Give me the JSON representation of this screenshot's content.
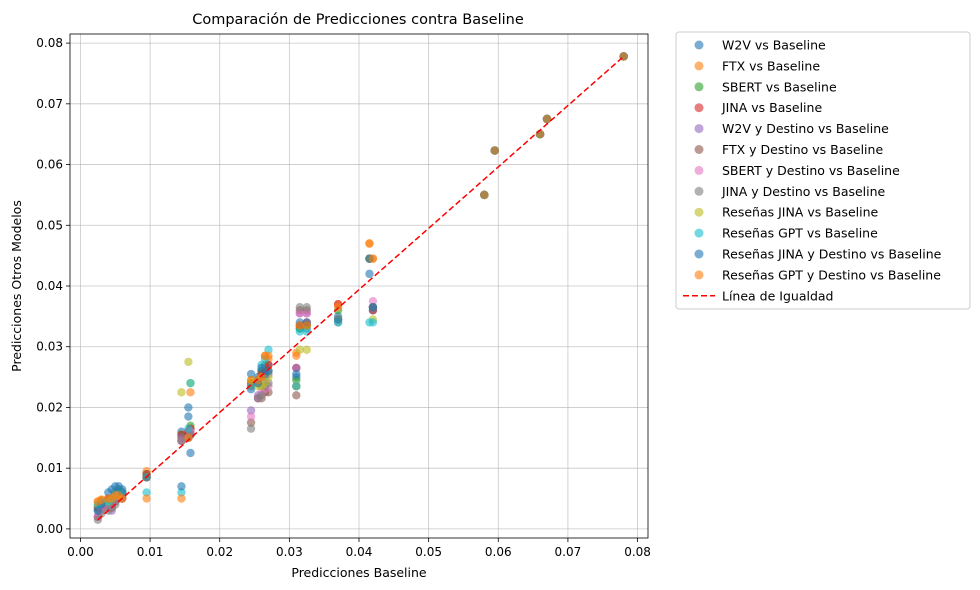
{
  "chart_data": {
    "type": "scatter",
    "title": "Comparación de Predicciones contra Baseline",
    "xlabel": "Predicciones Baseline",
    "ylabel": "Predicciones Otros Modelos",
    "xlim": [
      -0.0015,
      0.0815
    ],
    "ylim": [
      -0.0015,
      0.0815
    ],
    "xticks": [
      0.0,
      0.01,
      0.02,
      0.03,
      0.04,
      0.05,
      0.06,
      0.07,
      0.08
    ],
    "yticks": [
      0.0,
      0.01,
      0.02,
      0.03,
      0.04,
      0.05,
      0.06,
      0.07,
      0.08
    ],
    "xtick_labels": [
      "0.00",
      "0.01",
      "0.02",
      "0.03",
      "0.04",
      "0.05",
      "0.06",
      "0.07",
      "0.08"
    ],
    "ytick_labels": [
      "0.00",
      "0.01",
      "0.02",
      "0.03",
      "0.04",
      "0.05",
      "0.06",
      "0.07",
      "0.08"
    ],
    "grid": true,
    "legend_position": "outside-right-top",
    "x": [
      0.0025,
      0.003,
      0.004,
      0.0045,
      0.005,
      0.0055,
      0.006,
      0.0095,
      0.0145,
      0.0155,
      0.0158,
      0.0245,
      0.0255,
      0.026,
      0.0265,
      0.027,
      0.031,
      0.0315,
      0.0325,
      0.037,
      0.0415,
      0.042,
      0.058,
      0.0595,
      0.066,
      0.067,
      0.078
    ],
    "series": [
      {
        "name": "W2V vs Baseline",
        "color": "#1f77b4",
        "y": [
          0.003,
          0.0035,
          0.004,
          0.0045,
          0.0055,
          0.006,
          0.0065,
          0.0085,
          0.016,
          0.02,
          0.0155,
          0.023,
          0.025,
          0.026,
          0.025,
          0.027,
          0.025,
          0.033,
          0.033,
          0.035,
          0.042,
          0.036,
          0.055,
          0.0623,
          0.065,
          0.0675,
          0.0778
        ]
      },
      {
        "name": "FTX vs Baseline",
        "color": "#ff7f0e",
        "y": [
          0.0045,
          0.0048,
          0.005,
          0.005,
          0.0055,
          0.006,
          0.0055,
          0.0095,
          0.015,
          0.016,
          0.0165,
          0.024,
          0.024,
          0.025,
          0.0285,
          0.028,
          0.029,
          0.0335,
          0.0335,
          0.037,
          0.047,
          0.0445,
          0.055,
          0.0623,
          0.065,
          0.0675,
          0.0778
        ]
      },
      {
        "name": "SBERT vs Baseline",
        "color": "#2ca02c",
        "y": [
          0.0035,
          0.004,
          0.0045,
          0.005,
          0.006,
          0.0065,
          0.006,
          0.009,
          0.0155,
          0.0155,
          0.017,
          0.024,
          0.0245,
          0.026,
          0.027,
          0.026,
          0.0245,
          0.033,
          0.0335,
          0.036,
          0.0445,
          0.0365,
          0.055,
          0.0623,
          0.065,
          0.0675,
          0.0778
        ]
      },
      {
        "name": "JINA vs Baseline",
        "color": "#d62728",
        "y": [
          0.0035,
          0.0045,
          0.005,
          0.005,
          0.0055,
          0.006,
          0.006,
          0.009,
          0.0155,
          0.016,
          0.0165,
          0.0235,
          0.0245,
          0.0255,
          0.0265,
          0.027,
          0.0265,
          0.0335,
          0.034,
          0.037,
          0.0445,
          0.036,
          0.055,
          0.0623,
          0.065,
          0.0675,
          0.0778
        ]
      },
      {
        "name": "W2V y Destino vs Baseline",
        "color": "#9467bd",
        "y": [
          0.002,
          0.0035,
          0.0035,
          0.003,
          0.0045,
          0.0055,
          0.0055,
          0.0085,
          0.015,
          0.015,
          0.016,
          0.0195,
          0.022,
          0.0235,
          0.024,
          0.0255,
          0.0265,
          0.0355,
          0.0355,
          0.0345,
          0.0445,
          0.0365,
          0.055,
          0.0623,
          0.065,
          0.0675,
          0.0778
        ]
      },
      {
        "name": "FTX y Destino vs Baseline",
        "color": "#8c564b",
        "y": [
          0.002,
          0.003,
          0.0035,
          0.0035,
          0.0045,
          0.005,
          0.005,
          0.0085,
          0.0145,
          0.015,
          0.0155,
          0.0175,
          0.0215,
          0.0215,
          0.0225,
          0.0225,
          0.022,
          0.036,
          0.036,
          0.0345,
          0.0445,
          0.0365,
          0.055,
          0.0623,
          0.065,
          0.0675,
          0.0778
        ]
      },
      {
        "name": "SBERT y Destino vs Baseline",
        "color": "#e377c2",
        "y": [
          0.002,
          0.003,
          0.0035,
          0.0035,
          0.0045,
          0.005,
          0.005,
          0.0085,
          0.0145,
          0.015,
          0.016,
          0.0185,
          0.0215,
          0.0225,
          0.023,
          0.0235,
          0.0235,
          0.0355,
          0.0355,
          0.0345,
          0.0445,
          0.0375,
          0.055,
          0.0623,
          0.065,
          0.0675,
          0.0778
        ]
      },
      {
        "name": "JINA y Destino vs Baseline",
        "color": "#7f7f7f",
        "y": [
          0.0015,
          0.0025,
          0.003,
          0.0035,
          0.004,
          0.005,
          0.005,
          0.0085,
          0.0145,
          0.015,
          0.0155,
          0.0165,
          0.0215,
          0.022,
          0.0235,
          0.024,
          0.0235,
          0.0365,
          0.0365,
          0.034,
          0.0445,
          0.0365,
          0.055,
          0.0623,
          0.065,
          0.0675,
          0.0778
        ]
      },
      {
        "name": "Reseñas JINA vs Baseline",
        "color": "#bcbd22",
        "y": [
          0.004,
          0.0045,
          0.0045,
          0.005,
          0.0055,
          0.0055,
          0.006,
          0.0085,
          0.0225,
          0.0275,
          0.024,
          0.0245,
          0.0235,
          0.0235,
          0.024,
          0.025,
          0.0235,
          0.0295,
          0.0295,
          0.0345,
          0.0445,
          0.0345,
          0.055,
          0.0623,
          0.065,
          0.0675,
          0.0778
        ]
      },
      {
        "name": "Reseñas GPT vs Baseline",
        "color": "#17becf",
        "y": [
          0.004,
          0.0045,
          0.0045,
          0.005,
          0.0055,
          0.006,
          0.006,
          0.006,
          0.006,
          0.0165,
          0.024,
          0.0235,
          0.0245,
          0.027,
          0.028,
          0.0295,
          0.0235,
          0.0325,
          0.0325,
          0.034,
          0.034,
          0.034,
          0.055,
          0.0623,
          0.065,
          0.0675,
          0.0778
        ]
      },
      {
        "name": "Reseñas JINA y Destino vs Baseline",
        "color": "#1f77b4",
        "y": [
          0.003,
          0.004,
          0.006,
          0.0065,
          0.007,
          0.007,
          0.006,
          0.0085,
          0.007,
          0.0185,
          0.0125,
          0.0255,
          0.024,
          0.0265,
          0.0255,
          0.026,
          0.0255,
          0.034,
          0.034,
          0.0345,
          0.0445,
          0.0365,
          0.055,
          0.0623,
          0.065,
          0.0675,
          0.0778
        ]
      },
      {
        "name": "Reseñas GPT y Destino vs Baseline",
        "color": "#ff7f0e",
        "y": [
          0.0045,
          0.0048,
          0.005,
          0.005,
          0.0055,
          0.0055,
          0.005,
          0.005,
          0.005,
          0.015,
          0.0225,
          0.0245,
          0.0245,
          0.025,
          0.0285,
          0.0285,
          0.0285,
          0.0335,
          0.0335,
          0.0365,
          0.047,
          0.0445,
          0.055,
          0.0623,
          0.065,
          0.0675,
          0.0778
        ]
      }
    ],
    "marker_alpha": 0.6,
    "reference_line": {
      "name": "Línea de Igualdad",
      "color": "#ff0000",
      "style": "dashed",
      "x": [
        0.0025,
        0.078
      ],
      "y": [
        0.0015,
        0.0778
      ]
    }
  }
}
